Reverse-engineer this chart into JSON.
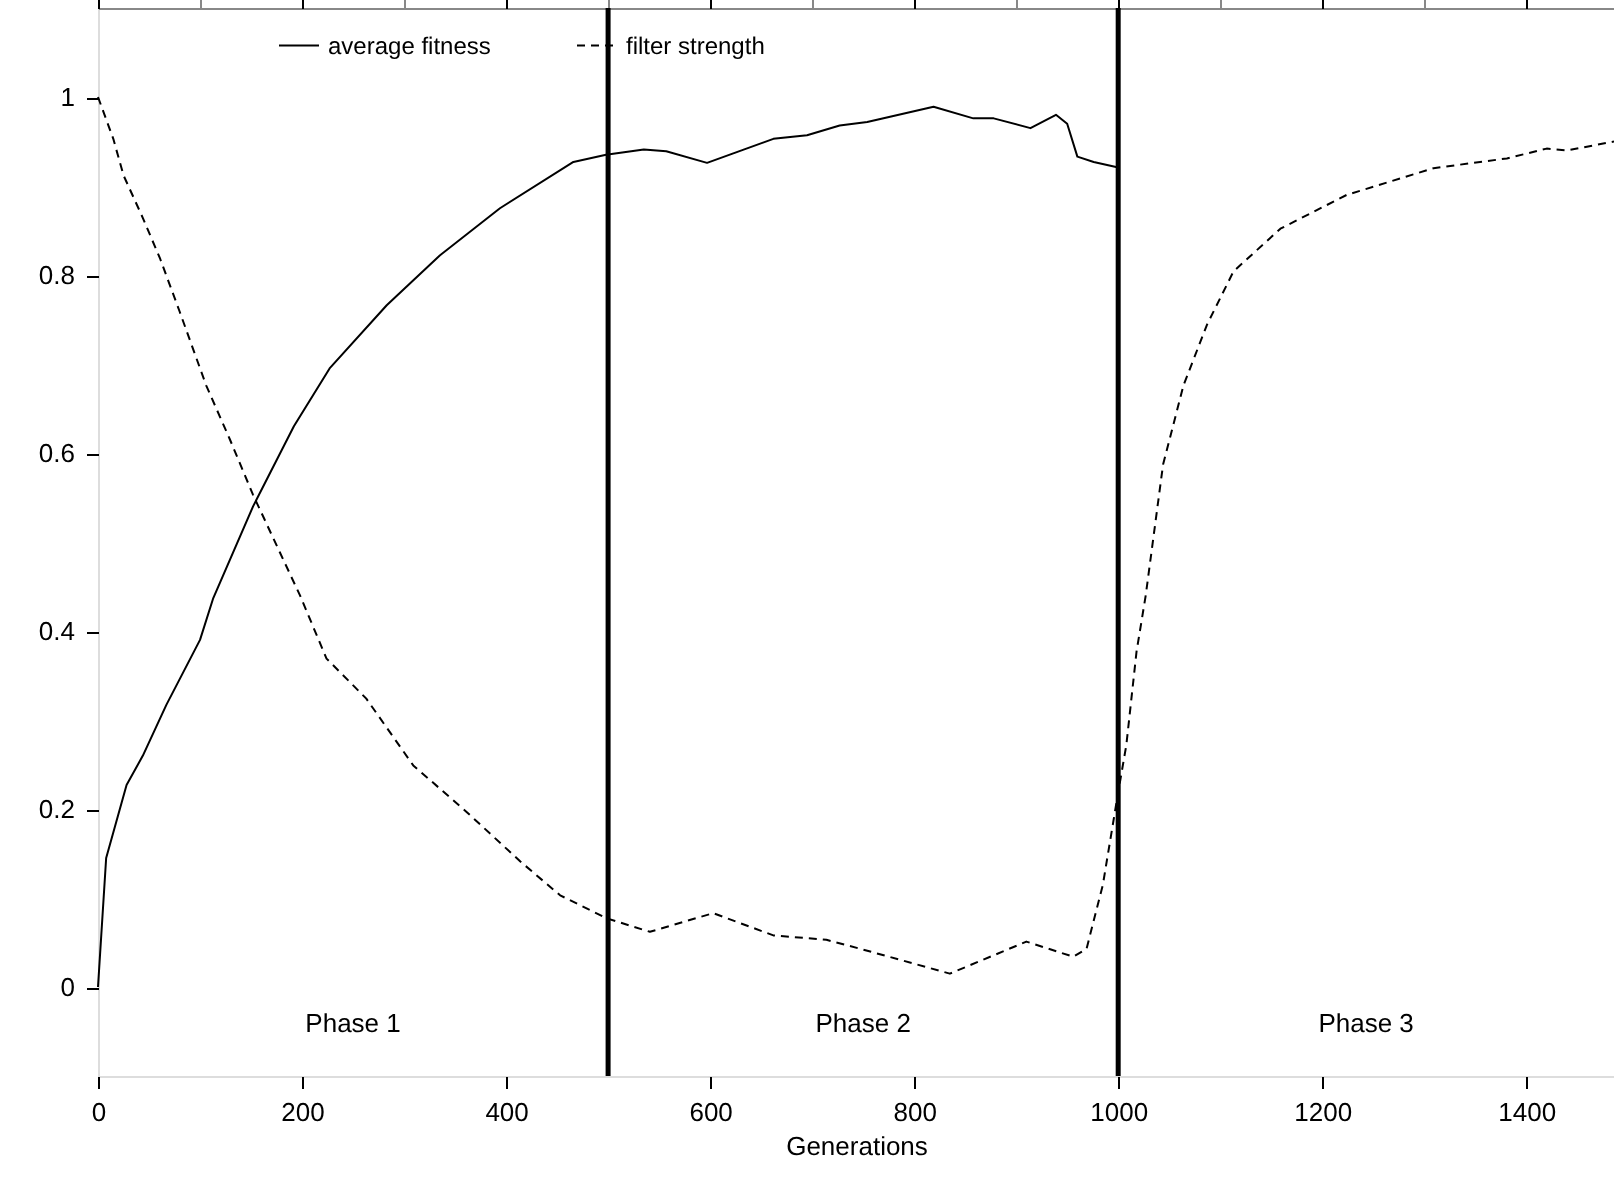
{
  "chart_data": {
    "type": "line",
    "xlabel": "Generations",
    "xlim": [
      0,
      1486
    ],
    "xticks": [
      0,
      200,
      400,
      600,
      800,
      1000,
      1200,
      1400
    ],
    "ylim": [
      -0.1,
      1.1
    ],
    "yticks": [
      0,
      0.2,
      0.4,
      0.6,
      0.8,
      1
    ],
    "grid": false,
    "legend": "top",
    "marker": "none",
    "series": [
      {
        "name": "average fitness",
        "color": "#000000",
        "line_style": "solid",
        "x": [
          0,
          8,
          28,
          44,
          67,
          100,
          113,
          152,
          192,
          227,
          283,
          335,
          394,
          466,
          498,
          535,
          557,
          597,
          662,
          695,
          727,
          754,
          819,
          858,
          878,
          914,
          939,
          950,
          960,
          976,
          999
        ],
        "values": [
          0,
          0.145,
          0.227,
          0.26,
          0.317,
          0.39,
          0.437,
          0.54,
          0.63,
          0.695,
          0.766,
          0.822,
          0.875,
          0.927,
          0.935,
          0.941,
          0.939,
          0.926,
          0.953,
          0.957,
          0.968,
          0.972,
          0.989,
          0.976,
          0.976,
          0.965,
          0.98,
          0.97,
          0.933,
          0.927,
          0.921
        ]
      },
      {
        "name": "filter strength",
        "color": "#000000",
        "line_style": "dashed",
        "x": [
          0,
          15,
          25,
          44,
          61,
          80,
          106,
          129,
          152,
          178,
          198,
          224,
          263,
          309,
          361,
          414,
          453,
          499,
          541,
          603,
          662,
          714,
          747,
          835,
          910,
          956,
          969,
          985,
          999,
          1008,
          1018,
          1027,
          1044,
          1064,
          1087,
          1113,
          1159,
          1224,
          1309,
          1381,
          1420,
          1440,
          1486
        ],
        "values": [
          1.0,
          0.953,
          0.912,
          0.864,
          0.818,
          0.759,
          0.676,
          0.616,
          0.553,
          0.489,
          0.44,
          0.369,
          0.324,
          0.249,
          0.197,
          0.141,
          0.103,
          0.077,
          0.062,
          0.083,
          0.058,
          0.053,
          0.043,
          0.015,
          0.051,
          0.034,
          0.043,
          0.115,
          0.212,
          0.272,
          0.377,
          0.44,
          0.587,
          0.676,
          0.744,
          0.804,
          0.852,
          0.89,
          0.92,
          0.931,
          0.942,
          0.94,
          0.95
        ]
      }
    ],
    "ref_lines": [
      {
        "axis": "x",
        "value": 500,
        "color": "#000000"
      },
      {
        "axis": "x",
        "value": 1000,
        "color": "#000000"
      }
    ],
    "annotations": [
      "Phase 1",
      "Phase 2",
      "Phase 3"
    ]
  }
}
